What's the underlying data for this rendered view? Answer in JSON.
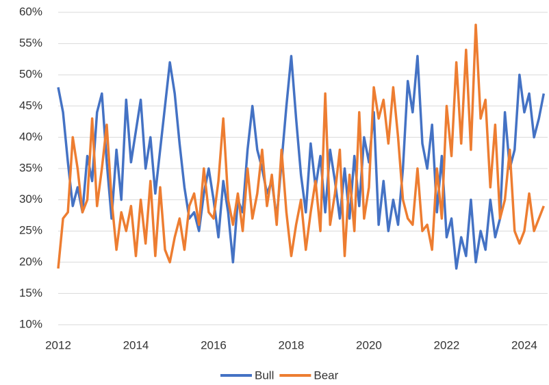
{
  "chart_data": {
    "type": "line",
    "x": [
      2012,
      2012.125,
      2012.25,
      2012.375,
      2012.5,
      2012.625,
      2012.75,
      2012.875,
      2013,
      2013.125,
      2013.25,
      2013.375,
      2013.5,
      2013.625,
      2013.75,
      2013.875,
      2014,
      2014.125,
      2014.25,
      2014.375,
      2014.5,
      2014.625,
      2014.75,
      2014.875,
      2015,
      2015.125,
      2015.25,
      2015.375,
      2015.5,
      2015.625,
      2015.75,
      2015.875,
      2016,
      2016.125,
      2016.25,
      2016.375,
      2016.5,
      2016.625,
      2016.75,
      2016.875,
      2017,
      2017.125,
      2017.25,
      2017.375,
      2017.5,
      2017.625,
      2017.75,
      2017.875,
      2018,
      2018.125,
      2018.25,
      2018.375,
      2018.5,
      2018.625,
      2018.75,
      2018.875,
      2019,
      2019.125,
      2019.25,
      2019.375,
      2019.5,
      2019.625,
      2019.75,
      2019.875,
      2020,
      2020.125,
      2020.25,
      2020.375,
      2020.5,
      2020.625,
      2020.75,
      2020.875,
      2021,
      2021.125,
      2021.25,
      2021.375,
      2021.5,
      2021.625,
      2021.75,
      2021.875,
      2022,
      2022.125,
      2022.25,
      2022.375,
      2022.5,
      2022.625,
      2022.75,
      2022.875,
      2023,
      2023.125,
      2023.25,
      2023.375,
      2023.5,
      2023.625,
      2023.75,
      2023.875,
      2024,
      2024.125,
      2024.25,
      2024.375,
      2024.5
    ],
    "series": [
      {
        "name": "Bull",
        "color": "#4472c4",
        "values": [
          48,
          44,
          36,
          29,
          32,
          28,
          37,
          33,
          44,
          47,
          36,
          27,
          38,
          30,
          46,
          36,
          41,
          46,
          35,
          40,
          31,
          38,
          45,
          52,
          47,
          39,
          32,
          27,
          28,
          25,
          31,
          35,
          30,
          24,
          33,
          28,
          20,
          30,
          28,
          38,
          45,
          38,
          35,
          31,
          33,
          27,
          36,
          45,
          53,
          43,
          34,
          28,
          39,
          32,
          37,
          28,
          38,
          33,
          27,
          35,
          27,
          37,
          29,
          40,
          36,
          44,
          26,
          33,
          25,
          30,
          26,
          35,
          49,
          44,
          53,
          39,
          35,
          42,
          28,
          37,
          24,
          27,
          19,
          24,
          21,
          30,
          20,
          25,
          22,
          30,
          24,
          27,
          44,
          35,
          38,
          50,
          44,
          47,
          40,
          43,
          47
        ]
      },
      {
        "name": "Bear",
        "color": "#ed7d31",
        "values": [
          19,
          27,
          28,
          40,
          35,
          28,
          30,
          43,
          29,
          35,
          42,
          30,
          22,
          28,
          25,
          29,
          21,
          30,
          23,
          33,
          21,
          32,
          22,
          20,
          24,
          27,
          22,
          29,
          31,
          26,
          35,
          28,
          27,
          33,
          43,
          30,
          26,
          31,
          25,
          35,
          27,
          31,
          38,
          29,
          34,
          26,
          38,
          28,
          21,
          26,
          30,
          22,
          28,
          33,
          25,
          47,
          26,
          31,
          38,
          21,
          34,
          25,
          44,
          27,
          32,
          48,
          43,
          46,
          39,
          48,
          40,
          30,
          27,
          26,
          35,
          25,
          26,
          22,
          35,
          27,
          45,
          37,
          52,
          39,
          54,
          38,
          58,
          43,
          46,
          32,
          42,
          27,
          30,
          38,
          25,
          23,
          25,
          31,
          25,
          27,
          29
        ]
      }
    ],
    "xlim": [
      2012,
      2024.6
    ],
    "xticks": [
      2012,
      2014,
      2016,
      2018,
      2020,
      2022,
      2024
    ],
    "ylim": [
      10,
      60
    ],
    "yticks": [
      {
        "value": 10,
        "label": "10%"
      },
      {
        "value": 15,
        "label": "15%"
      },
      {
        "value": 20,
        "label": "20%"
      },
      {
        "value": 25,
        "label": "25%"
      },
      {
        "value": 30,
        "label": "30%"
      },
      {
        "value": 35,
        "label": "35%"
      },
      {
        "value": 40,
        "label": "40%"
      },
      {
        "value": 45,
        "label": "45%"
      },
      {
        "value": 50,
        "label": "50%"
      },
      {
        "value": 55,
        "label": "55%"
      },
      {
        "value": 60,
        "label": "60%"
      }
    ],
    "grid": true,
    "legend": "bottom"
  }
}
